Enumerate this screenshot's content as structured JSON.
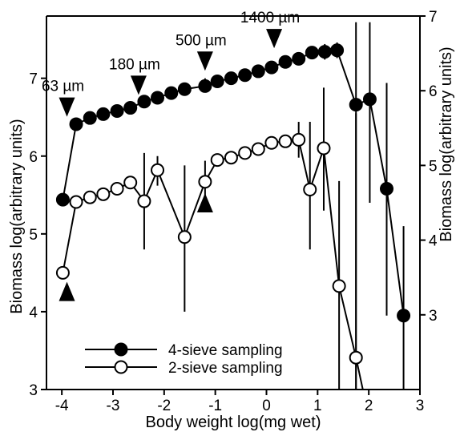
{
  "chart_data": {
    "type": "line",
    "xlabel": "Body weight log(mg wet)",
    "ylabel_left": "Biomass log(arbitrary units)",
    "ylabel_right": "Biomass log(arbitrary units)",
    "xlim": [
      -4.3,
      3.0
    ],
    "ylim_left": [
      3,
      7.8
    ],
    "ylim_right": [
      2.0,
      7.0
    ],
    "x_ticks": [
      "-4",
      "-3",
      "-2",
      "-1",
      "0",
      "1",
      "2",
      "3"
    ],
    "x_tick_values": [
      -4,
      -3,
      -2,
      -1,
      0,
      1,
      2,
      3
    ],
    "y_left_ticks": [
      "3",
      "4",
      "5",
      "6",
      "7"
    ],
    "y_left_tick_values": [
      3,
      4,
      5,
      6,
      7
    ],
    "y_right_ticks": [
      "3",
      "4",
      "5",
      "6",
      "7"
    ],
    "y_right_tick_values": [
      3,
      4,
      5,
      6,
      7
    ],
    "series": [
      {
        "name": "4-sieve sampling",
        "axis": "left",
        "marker": "filled",
        "points": [
          {
            "x": -3.98,
            "y": 5.44
          },
          {
            "x": -3.72,
            "y": 6.41
          },
          {
            "x": -3.45,
            "y": 6.49
          },
          {
            "x": -3.19,
            "y": 6.54
          },
          {
            "x": -2.92,
            "y": 6.58
          },
          {
            "x": -2.66,
            "y": 6.62
          },
          {
            "x": -2.39,
            "y": 6.7
          },
          {
            "x": -2.13,
            "y": 6.75
          },
          {
            "x": -1.86,
            "y": 6.81
          },
          {
            "x": -1.6,
            "y": 6.86
          },
          {
            "x": -1.2,
            "y": 6.9,
            "err": [
              6.83,
              7.0
            ]
          },
          {
            "x": -0.96,
            "y": 6.96
          },
          {
            "x": -0.69,
            "y": 7.0
          },
          {
            "x": -0.42,
            "y": 7.04
          },
          {
            "x": -0.16,
            "y": 7.09
          },
          {
            "x": 0.1,
            "y": 7.14
          },
          {
            "x": 0.37,
            "y": 7.21
          },
          {
            "x": 0.63,
            "y": 7.25
          },
          {
            "x": 0.89,
            "y": 7.33
          },
          {
            "x": 1.14,
            "y": 7.34,
            "err": [
              7.24,
              7.44
            ]
          },
          {
            "x": 1.38,
            "y": 7.36,
            "err": [
              7.26,
              7.46
            ]
          },
          {
            "x": 1.75,
            "y": 6.66,
            "err": [
              3.0,
              7.72
            ]
          },
          {
            "x": 2.02,
            "y": 6.73,
            "err": [
              5.4,
              7.72
            ]
          },
          {
            "x": 2.35,
            "y": 5.58,
            "err": [
              3.95,
              6.94
            ]
          },
          {
            "x": 2.68,
            "y": 3.95,
            "err": [
              3.0,
              5.1
            ]
          }
        ]
      },
      {
        "name": "2-sieve sampling",
        "axis": "left",
        "marker": "open",
        "points": [
          {
            "x": -3.98,
            "y": 4.5
          },
          {
            "x": -3.72,
            "y": 5.41
          },
          {
            "x": -3.45,
            "y": 5.47
          },
          {
            "x": -3.19,
            "y": 5.51
          },
          {
            "x": -2.92,
            "y": 5.58
          },
          {
            "x": -2.66,
            "y": 5.66
          },
          {
            "x": -2.39,
            "y": 5.42,
            "err": [
              4.8,
              6.04
            ]
          },
          {
            "x": -2.13,
            "y": 5.82,
            "err": [
              5.62,
              6.0
            ]
          },
          {
            "x": -1.6,
            "y": 4.96,
            "err": [
              4.0,
              5.88
            ]
          },
          {
            "x": -1.2,
            "y": 5.67,
            "err": [
              5.42,
              5.94
            ]
          },
          {
            "x": -0.96,
            "y": 5.95
          },
          {
            "x": -0.69,
            "y": 5.98
          },
          {
            "x": -0.42,
            "y": 6.04
          },
          {
            "x": -0.16,
            "y": 6.09
          },
          {
            "x": 0.1,
            "y": 6.17
          },
          {
            "x": 0.37,
            "y": 6.19
          },
          {
            "x": 0.63,
            "y": 6.21,
            "err": [
              5.98,
              6.44
            ]
          },
          {
            "x": 0.85,
            "y": 5.57,
            "err": [
              4.8,
              6.44
            ]
          },
          {
            "x": 1.12,
            "y": 6.1,
            "err": [
              5.3,
              6.88
            ]
          },
          {
            "x": 1.42,
            "y": 4.33,
            "err": [
              3.0,
              5.68
            ]
          },
          {
            "x": 1.75,
            "y": 3.41,
            "err": [
              3.0,
              6.55
            ]
          },
          {
            "x": 2.08,
            "y": 2.4
          }
        ]
      }
    ],
    "size_markers": [
      {
        "label": "63 µm",
        "x": -3.9,
        "y": 6.63,
        "dir": "down"
      },
      {
        "label": "180 µm",
        "x": -2.5,
        "y": 6.91,
        "dir": "down"
      },
      {
        "label": "500 µm",
        "x": -1.2,
        "y": 7.22,
        "dir": "down"
      },
      {
        "label": "1400 µm",
        "x": 0.15,
        "y": 7.51,
        "dir": "down"
      }
    ],
    "size_markers_2": [
      {
        "x": -3.9,
        "y": 4.26,
        "dir": "up"
      },
      {
        "x": -1.2,
        "y": 5.4,
        "dir": "up"
      }
    ],
    "legend": [
      {
        "label": "4-sieve sampling",
        "marker": "filled"
      },
      {
        "label": "2-sieve sampling",
        "marker": "open"
      }
    ],
    "legend_position": "lower-left",
    "grid": false
  }
}
